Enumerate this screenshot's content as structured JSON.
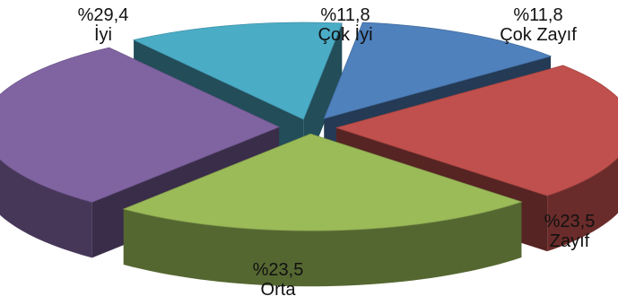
{
  "chart_data": {
    "type": "pie",
    "style": "3d-exploded",
    "slices": [
      {
        "label": "Çok İyi",
        "percent_text": "%11,8",
        "value": 11.8,
        "color": "#4bacc6"
      },
      {
        "label": "Çok Zayıf",
        "percent_text": "%11,8",
        "value": 11.8,
        "color": "#4f81bd"
      },
      {
        "label": "Zayıf",
        "percent_text": "%23,5",
        "value": 23.5,
        "color": "#c0504d"
      },
      {
        "label": "Orta",
        "percent_text": "%23,5",
        "value": 23.5,
        "color": "#9bbb59"
      },
      {
        "label": "İyi",
        "percent_text": "%29,4",
        "value": 29.4,
        "color": "#8064a2"
      }
    ]
  }
}
